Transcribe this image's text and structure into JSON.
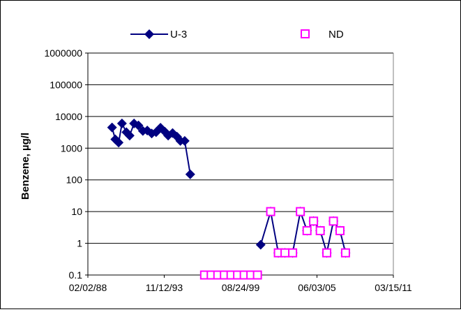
{
  "chart_data": {
    "type": "scatter",
    "title": "",
    "xlabel": "",
    "ylabel": "Benzene, µg/l",
    "y_scale": "log",
    "ylim": [
      0.1,
      1000000
    ],
    "y_ticks": [
      "0.1",
      "1",
      "10",
      "100",
      "1000",
      "10000",
      "100000",
      "1000000"
    ],
    "xlim": [
      "02/02/88",
      "03/15/11"
    ],
    "x_ticks": [
      "02/02/88",
      "11/12/93",
      "08/24/99",
      "06/03/05",
      "03/15/11"
    ],
    "grid": true,
    "legend_position": "top",
    "series": [
      {
        "name": "U-3",
        "marker": "diamond",
        "line": true,
        "color": "#000080",
        "points": [
          {
            "x": "1989-12-01",
            "y": 4500
          },
          {
            "x": "1990-03-01",
            "y": 1900
          },
          {
            "x": "1990-06-01",
            "y": 1500
          },
          {
            "x": "1990-09-01",
            "y": 6000
          },
          {
            "x": "1991-01-01",
            "y": 3200
          },
          {
            "x": "1991-04-01",
            "y": 2500
          },
          {
            "x": "1991-08-01",
            "y": 6000
          },
          {
            "x": "1991-12-01",
            "y": 5200
          },
          {
            "x": "1992-04-01",
            "y": 3500
          },
          {
            "x": "1992-08-01",
            "y": 3600
          },
          {
            "x": "1992-12-01",
            "y": 2900
          },
          {
            "x": "1993-04-01",
            "y": 3200
          },
          {
            "x": "1993-08-01",
            "y": 4400
          },
          {
            "x": "1993-12-01",
            "y": 3300
          },
          {
            "x": "1994-03-01",
            "y": 2500
          },
          {
            "x": "1994-07-01",
            "y": 3000
          },
          {
            "x": "1994-11-01",
            "y": 2300
          },
          {
            "x": "1995-02-01",
            "y": 1700
          },
          {
            "x": "1995-06-01",
            "y": 1700
          },
          {
            "x": "1995-11-01",
            "y": 150
          },
          {
            "x": "2001-03-01",
            "y": 0.9
          },
          {
            "x": "2001-12-01",
            "y": 10
          },
          {
            "x": "2002-07-01",
            "y": 0.5
          },
          {
            "x": "2003-01-01",
            "y": 0.5
          },
          {
            "x": "2003-08-01",
            "y": 0.5
          },
          {
            "x": "2004-03-01",
            "y": 10
          },
          {
            "x": "2004-09-01",
            "y": 2.5
          },
          {
            "x": "2005-03-01",
            "y": 5
          },
          {
            "x": "2005-09-01",
            "y": 2.5
          },
          {
            "x": "2006-03-01",
            "y": 0.5
          },
          {
            "x": "2006-09-01",
            "y": 5
          },
          {
            "x": "2007-03-01",
            "y": 2.5
          },
          {
            "x": "2007-08-01",
            "y": 0.5
          }
        ]
      },
      {
        "name": "ND",
        "marker": "open-square",
        "line": false,
        "color": "#ff00ff",
        "points": [
          {
            "x": "1996-12-01",
            "y": 0.1
          },
          {
            "x": "1997-06-01",
            "y": 0.1
          },
          {
            "x": "1997-12-01",
            "y": 0.1
          },
          {
            "x": "1998-06-01",
            "y": 0.1
          },
          {
            "x": "1998-12-01",
            "y": 0.1
          },
          {
            "x": "1999-06-01",
            "y": 0.1
          },
          {
            "x": "1999-12-01",
            "y": 0.1
          },
          {
            "x": "2000-06-01",
            "y": 0.1
          },
          {
            "x": "2000-12-01",
            "y": 0.1
          },
          {
            "x": "2001-12-01",
            "y": 10
          },
          {
            "x": "2002-07-01",
            "y": 0.5
          },
          {
            "x": "2003-01-01",
            "y": 0.5
          },
          {
            "x": "2003-08-01",
            "y": 0.5
          },
          {
            "x": "2004-03-01",
            "y": 10
          },
          {
            "x": "2004-09-01",
            "y": 2.5
          },
          {
            "x": "2005-03-01",
            "y": 5
          },
          {
            "x": "2005-09-01",
            "y": 2.5
          },
          {
            "x": "2006-03-01",
            "y": 0.5
          },
          {
            "x": "2006-09-01",
            "y": 5
          },
          {
            "x": "2007-03-01",
            "y": 2.5
          },
          {
            "x": "2007-08-01",
            "y": 0.5
          }
        ]
      }
    ]
  }
}
